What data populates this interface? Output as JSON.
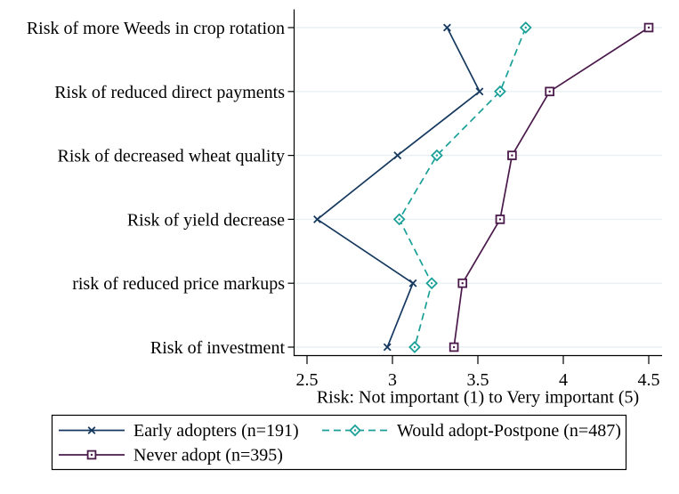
{
  "chart_data": {
    "type": "line",
    "orientation": "horizontal-categories",
    "xlabel": "Risk: Not important (1) to Very important (5)",
    "categories": [
      "Risk of more Weeds in crop rotation",
      "Risk of reduced direct payments",
      "Risk of decreased wheat quality",
      "Risk of yield decrease",
      "risk of reduced price markups",
      "Risk of investment"
    ],
    "series": [
      {
        "name": "Early adopters (n=191)",
        "color": "#16395f",
        "line": "solid",
        "marker": "x",
        "values": [
          3.32,
          3.51,
          3.03,
          2.56,
          3.12,
          2.97
        ]
      },
      {
        "name": "Would adopt-Postpone (n=487)",
        "color": "#1aa098",
        "line": "dashed",
        "marker": "diamond",
        "values": [
          3.78,
          3.63,
          3.26,
          3.04,
          3.23,
          3.13
        ]
      },
      {
        "name": "Never adopt (n=395)",
        "color": "#4a1a4b",
        "line": "solid",
        "marker": "square",
        "values": [
          4.5,
          3.92,
          3.7,
          3.63,
          3.41,
          3.36
        ]
      }
    ],
    "xticks": {
      "values": [
        2.5,
        3,
        3.5,
        4,
        4.5
      ],
      "labels": [
        "2.5",
        "3",
        "3.5",
        "4",
        "4.5"
      ]
    },
    "xlim": [
      2.42,
      4.58
    ],
    "grid": true,
    "legend_position": "bottom",
    "colors": {
      "grid": "#e8f0f2",
      "axis": "#000000",
      "text": "#000000",
      "background": "#ffffff"
    }
  }
}
